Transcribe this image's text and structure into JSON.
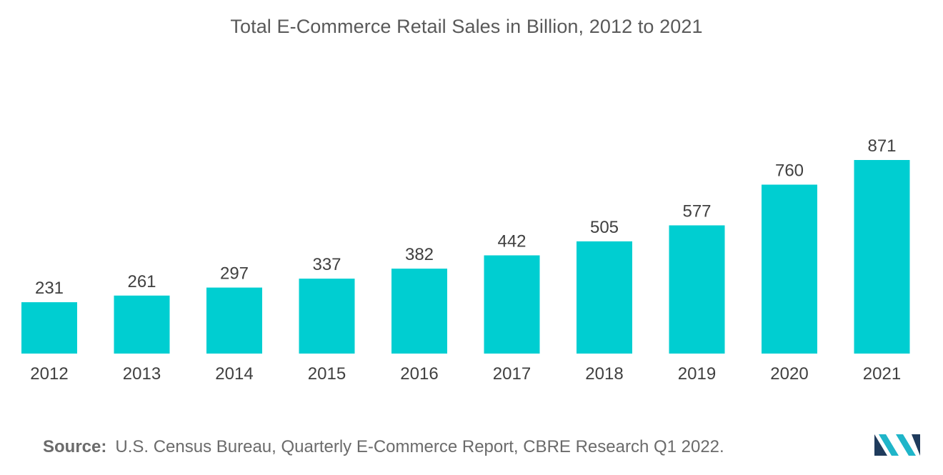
{
  "chart_data": {
    "type": "bar",
    "title": "Total E-Commerce Retail Sales in Billion, 2012 to 2021",
    "xlabel": "",
    "ylabel": "",
    "categories": [
      "2012",
      "2013",
      "2014",
      "2015",
      "2016",
      "2017",
      "2018",
      "2019",
      "2020",
      "2021"
    ],
    "values": [
      231,
      261,
      297,
      337,
      382,
      442,
      505,
      577,
      760,
      871
    ],
    "ylim": [
      0,
      871
    ],
    "grid": false,
    "legend": "none",
    "data_labels": true,
    "colors": {
      "bar": "#00CED1"
    }
  },
  "source": {
    "label": "Source:",
    "text": "U.S. Census Bureau, Quarterly E-Commerce Report, CBRE Research Q1 2022."
  },
  "logo": {
    "icon": "mordor-intelligence-logo-icon",
    "colors": [
      "#1f3b5c",
      "#1fb5c9"
    ]
  }
}
